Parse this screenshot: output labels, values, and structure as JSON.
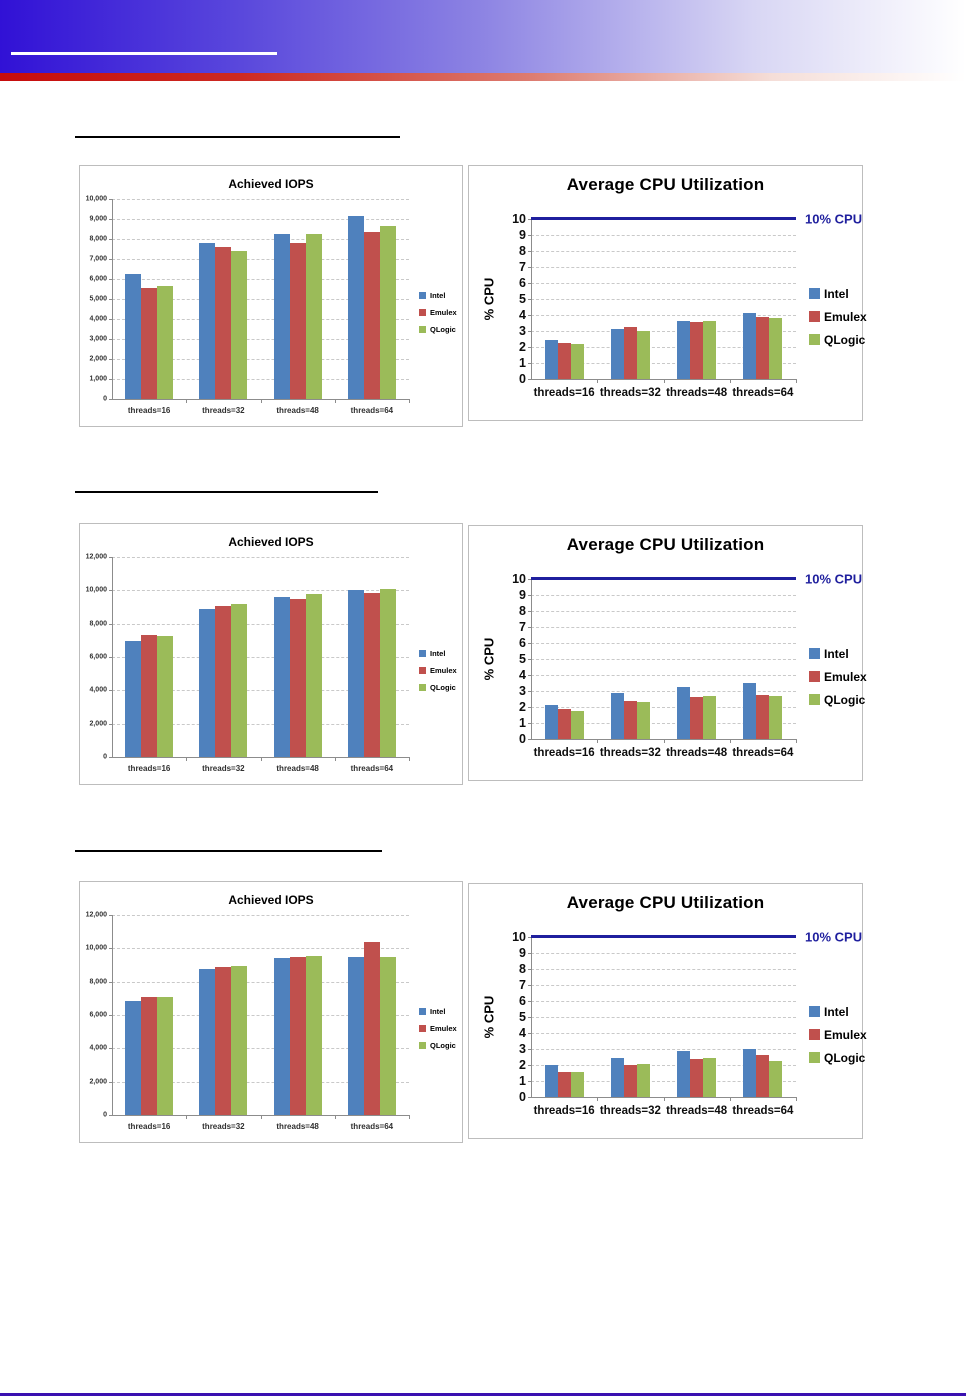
{
  "page": {
    "background": "#ffffff",
    "header": {
      "band_gradient_left": "#3111d6",
      "band_gradient_right": "#ffffff",
      "underline_color": "#ffffff",
      "red_strip_left": "#c60c0c"
    },
    "footer": {
      "line_color": "#3a10b0"
    },
    "section_rules_color": "#000000"
  },
  "series_colors": {
    "Intel": "#4f81bd",
    "Emulex": "#c0504d",
    "QLogic": "#9bbb59"
  },
  "ref_color": "#1f1f9e",
  "chart_data": [
    {
      "kind": "iops",
      "type": "bar",
      "title": "Achieved IOPS",
      "categories": [
        "threads=16",
        "threads=32",
        "threads=48",
        "threads=64"
      ],
      "series": [
        {
          "name": "Intel",
          "color": "#4f81bd",
          "values": [
            6250,
            7800,
            8250,
            9150
          ]
        },
        {
          "name": "Emulex",
          "color": "#c0504d",
          "values": [
            5550,
            7600,
            7800,
            8350
          ]
        },
        {
          "name": "QLogic",
          "color": "#9bbb59",
          "values": [
            5650,
            7400,
            8250,
            8650
          ]
        }
      ],
      "ylim": [
        0,
        10000
      ],
      "ystep": 1000,
      "ytick_labels": [
        "0",
        "1,000",
        "2,000",
        "3,000",
        "4,000",
        "5,000",
        "6,000",
        "7,000",
        "8,000",
        "9,000",
        "10,000"
      ],
      "grid": true,
      "legend_position": "right"
    },
    {
      "kind": "cpu",
      "type": "bar",
      "title": "Average CPU Utilization",
      "ylabel": "% CPU",
      "categories": [
        "threads=16",
        "threads=32",
        "threads=48",
        "threads=64"
      ],
      "series": [
        {
          "name": "Intel",
          "color": "#4f81bd",
          "values": [
            2.45,
            3.15,
            3.65,
            4.15
          ]
        },
        {
          "name": "Emulex",
          "color": "#c0504d",
          "values": [
            2.25,
            3.25,
            3.55,
            3.9
          ]
        },
        {
          "name": "QLogic",
          "color": "#9bbb59",
          "values": [
            2.2,
            3.0,
            3.6,
            3.8
          ]
        }
      ],
      "ylim": [
        0,
        10
      ],
      "ystep": 1,
      "ytick_labels": [
        "0",
        "1",
        "2",
        "3",
        "4",
        "5",
        "6",
        "7",
        "8",
        "9",
        "10"
      ],
      "ref_line": {
        "value": 10,
        "label": "10% CPU",
        "color": "#1f1f9e"
      },
      "grid": true,
      "legend_position": "right"
    },
    {
      "kind": "iops",
      "type": "bar",
      "title": "Achieved IOPS",
      "categories": [
        "threads=16",
        "threads=32",
        "threads=48",
        "threads=64"
      ],
      "series": [
        {
          "name": "Intel",
          "color": "#4f81bd",
          "values": [
            6950,
            8900,
            9600,
            10000
          ]
        },
        {
          "name": "Emulex",
          "color": "#c0504d",
          "values": [
            7300,
            9050,
            9450,
            9850
          ]
        },
        {
          "name": "QLogic",
          "color": "#9bbb59",
          "values": [
            7250,
            9150,
            9800,
            10100
          ]
        }
      ],
      "ylim": [
        0,
        12000
      ],
      "ystep": 2000,
      "ytick_labels": [
        "0",
        "2,000",
        "4,000",
        "6,000",
        "8,000",
        "10,000",
        "12,000"
      ],
      "grid": true,
      "legend_position": "right"
    },
    {
      "kind": "cpu",
      "type": "bar",
      "title": "Average CPU Utilization",
      "ylabel": "% CPU",
      "categories": [
        "threads=16",
        "threads=32",
        "threads=48",
        "threads=64"
      ],
      "series": [
        {
          "name": "Intel",
          "color": "#4f81bd",
          "values": [
            2.1,
            2.85,
            3.25,
            3.5
          ]
        },
        {
          "name": "Emulex",
          "color": "#c0504d",
          "values": [
            1.9,
            2.4,
            2.6,
            2.75
          ]
        },
        {
          "name": "QLogic",
          "color": "#9bbb59",
          "values": [
            1.75,
            2.3,
            2.7,
            2.7
          ]
        }
      ],
      "ylim": [
        0,
        10
      ],
      "ystep": 1,
      "ytick_labels": [
        "0",
        "1",
        "2",
        "3",
        "4",
        "5",
        "6",
        "7",
        "8",
        "9",
        "10"
      ],
      "ref_line": {
        "value": 10,
        "label": "10% CPU",
        "color": "#1f1f9e"
      },
      "grid": true,
      "legend_position": "right"
    },
    {
      "kind": "iops",
      "type": "bar",
      "title": "Achieved IOPS",
      "categories": [
        "threads=16",
        "threads=32",
        "threads=48",
        "threads=64"
      ],
      "series": [
        {
          "name": "Intel",
          "color": "#4f81bd",
          "values": [
            6850,
            8750,
            9400,
            9450
          ]
        },
        {
          "name": "Emulex",
          "color": "#c0504d",
          "values": [
            7100,
            8850,
            9450,
            10350
          ]
        },
        {
          "name": "QLogic",
          "color": "#9bbb59",
          "values": [
            7050,
            8950,
            9550,
            9450
          ]
        }
      ],
      "ylim": [
        0,
        12000
      ],
      "ystep": 2000,
      "ytick_labels": [
        "0",
        "2,000",
        "4,000",
        "6,000",
        "8,000",
        "10,000",
        "12,000"
      ],
      "grid": true,
      "legend_position": "right"
    },
    {
      "kind": "cpu",
      "type": "bar",
      "title": "Average CPU Utilization",
      "ylabel": "% CPU",
      "categories": [
        "threads=16",
        "threads=32",
        "threads=48",
        "threads=64"
      ],
      "series": [
        {
          "name": "Intel",
          "color": "#4f81bd",
          "values": [
            2.0,
            2.45,
            2.9,
            3.0
          ]
        },
        {
          "name": "Emulex",
          "color": "#c0504d",
          "values": [
            1.55,
            2.0,
            2.35,
            2.6
          ]
        },
        {
          "name": "QLogic",
          "color": "#9bbb59",
          "values": [
            1.55,
            2.05,
            2.45,
            2.25
          ]
        }
      ],
      "ylim": [
        0,
        10
      ],
      "ystep": 1,
      "ytick_labels": [
        "0",
        "1",
        "2",
        "3",
        "4",
        "5",
        "6",
        "7",
        "8",
        "9",
        "10"
      ],
      "ref_line": {
        "value": 10,
        "label": "10% CPU",
        "color": "#1f1f9e"
      },
      "grid": true,
      "legend_position": "right"
    }
  ]
}
